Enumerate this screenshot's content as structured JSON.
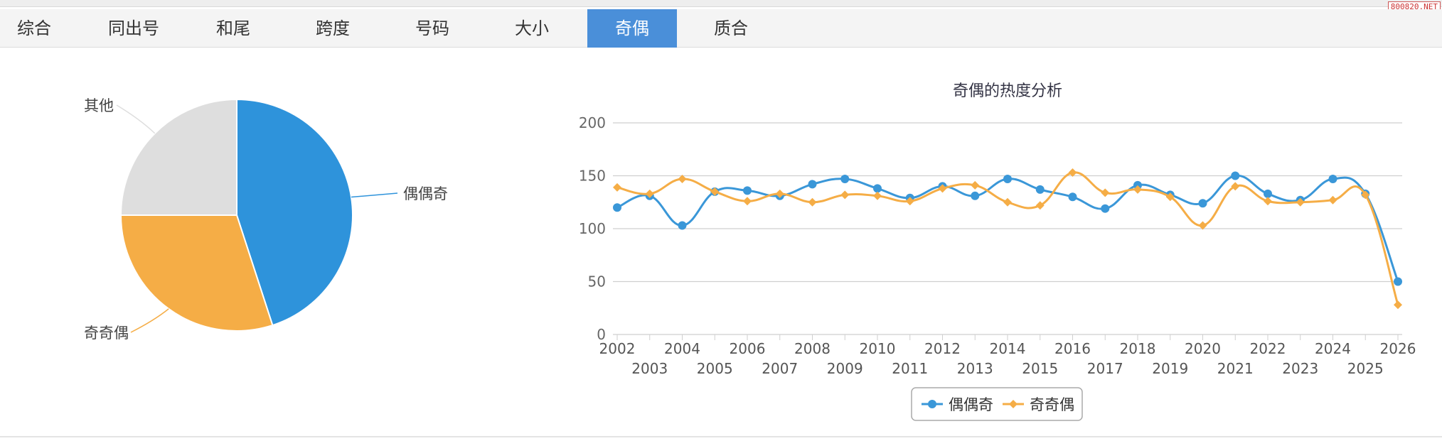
{
  "tabs": [
    {
      "label": "综合",
      "active": false
    },
    {
      "label": "同出号",
      "active": false
    },
    {
      "label": "和尾",
      "active": false
    },
    {
      "label": "跨度",
      "active": false
    },
    {
      "label": "号码",
      "active": false
    },
    {
      "label": "大小",
      "active": false
    },
    {
      "label": "奇偶",
      "active": true
    },
    {
      "label": "质合",
      "active": false
    }
  ],
  "watermark": "800820.NET",
  "colors": {
    "blue": "#3a97d8",
    "orange": "#f5ad46",
    "gray": "#dedede",
    "active_tab": "#4a8fd9"
  },
  "chart_data": [
    {
      "type": "pie",
      "slices": [
        {
          "name": "偶偶奇",
          "value": 45,
          "color": "#2e93db"
        },
        {
          "name": "奇奇偶",
          "value": 30,
          "color": "#f5ad46"
        },
        {
          "name": "其他",
          "value": 25,
          "color": "#dedede"
        }
      ]
    },
    {
      "type": "line",
      "title": "奇偶的热度分析",
      "x": [
        "2002",
        "2003",
        "2004",
        "2005",
        "2006",
        "2007",
        "2008",
        "2009",
        "2010",
        "2011",
        "2012",
        "2013",
        "2014",
        "2015",
        "2016",
        "2017",
        "2018",
        "2019",
        "2020",
        "2021",
        "2022",
        "2023",
        "2024",
        "2025",
        "2026"
      ],
      "ylim": [
        0,
        200
      ],
      "yticks": [
        "0",
        "50",
        "100",
        "150",
        "200"
      ],
      "grid": true,
      "legend": "bottom-center",
      "series": [
        {
          "name": "偶偶奇",
          "color": "#3a97d8",
          "marker": "circle",
          "values": [
            120,
            131,
            103,
            135,
            136,
            131,
            142,
            147,
            138,
            129,
            140,
            131,
            147,
            137,
            130,
            119,
            141,
            132,
            124,
            150,
            133,
            127,
            147,
            133,
            50
          ]
        },
        {
          "name": "奇奇偶",
          "color": "#f5ad46",
          "marker": "diamond",
          "values": [
            139,
            133,
            147,
            135,
            126,
            133,
            125,
            132,
            131,
            126,
            138,
            141,
            125,
            122,
            153,
            134,
            137,
            130,
            103,
            140,
            126,
            125,
            127,
            132,
            28
          ]
        }
      ]
    }
  ]
}
